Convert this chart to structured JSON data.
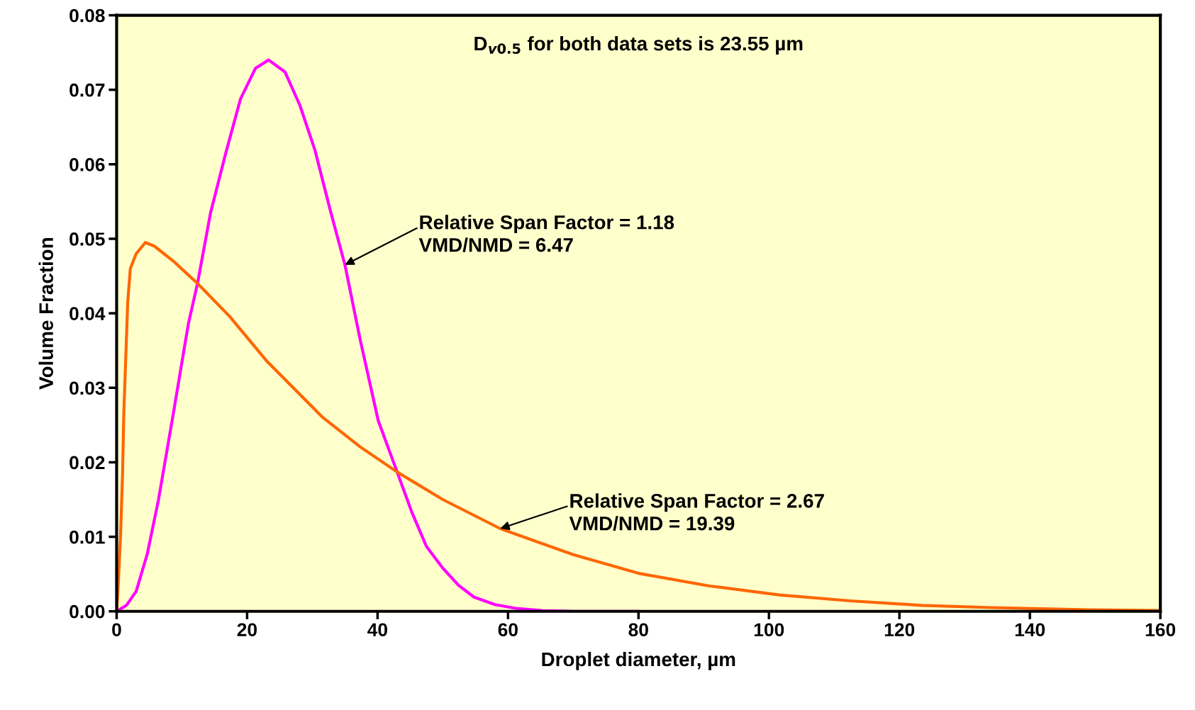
{
  "chart_data": {
    "type": "line",
    "xlabel": "Droplet diameter, µm",
    "ylabel": "Volume Fraction",
    "xlim": [
      0,
      160
    ],
    "xticks": [
      0,
      20,
      40,
      60,
      80,
      100,
      120,
      140,
      160
    ],
    "ylim": [
      0,
      0.08
    ],
    "yticks": [
      {
        "value": 0,
        "label": "0.00"
      },
      {
        "value": 0.01,
        "label": "0.01"
      },
      {
        "value": 0.02,
        "label": "0.02"
      },
      {
        "value": 0.03,
        "label": "0.03"
      },
      {
        "value": 0.04,
        "label": "0.04"
      },
      {
        "value": 0.05,
        "label": "0.05"
      },
      {
        "value": 0.06,
        "label": "0.06"
      },
      {
        "value": 0.07,
        "label": "0.07"
      },
      {
        "value": 0.08,
        "label": "0.08"
      }
    ],
    "grid": false,
    "legend": false,
    "marker": "none",
    "line_style": "solid",
    "series": [
      {
        "color": "#ff00ff",
        "x": [
          0,
          1.5,
          3,
          4.7,
          6.4,
          8.7,
          11,
          12.4,
          14.4,
          16.7,
          19,
          21.3,
          23.3,
          25.8,
          28.1,
          30.4,
          32.7,
          35,
          37.3,
          40.1,
          43,
          45.3,
          47.5,
          50,
          52.4,
          54.8,
          58,
          61.2,
          65.2,
          70,
          80
        ],
        "values": [
          0,
          0.0008,
          0.0027,
          0.0077,
          0.0149,
          0.0266,
          0.0386,
          0.044,
          0.0535,
          0.0614,
          0.0688,
          0.0729,
          0.074,
          0.0724,
          0.0679,
          0.0619,
          0.054,
          0.0465,
          0.0366,
          0.0256,
          0.0187,
          0.0132,
          0.0087,
          0.0058,
          0.0035,
          0.0019,
          0.0009,
          0.0004,
          0.0001,
          0,
          0
        ]
      },
      {
        "color": "#ff6600",
        "x": [
          0,
          0.2,
          0.6,
          0.9,
          1.1,
          1.4,
          1.7,
          2.1,
          3,
          4.4,
          5.8,
          8.7,
          12.4,
          17.3,
          23,
          31.5,
          37.3,
          43,
          50,
          58.8,
          70,
          80,
          90.9,
          101.6,
          112.5,
          123.4,
          134.2,
          149.4,
          160
        ],
        "values": [
          0,
          0.0027,
          0.0102,
          0.0182,
          0.0266,
          0.034,
          0.0415,
          0.046,
          0.048,
          0.0495,
          0.049,
          0.047,
          0.044,
          0.0396,
          0.0336,
          0.0261,
          0.0221,
          0.0187,
          0.015,
          0.0111,
          0.0076,
          0.0051,
          0.0034,
          0.0022,
          0.0014,
          0.0008,
          0.0005,
          0.0002,
          0.0001
        ]
      }
    ],
    "annotations": [
      "D$_{v0.5}$ for both data sets is 23.55 µm",
      {
        "text": "Relative Span Factor = 1.18\nVMD/NMD = 6.47",
        "x": 35,
        "y": 0.0465
      },
      {
        "text": "Relative Span Factor = 2.67\nVMD/NMD = 19.39",
        "x": 58.8,
        "y": 0.0111
      }
    ]
  }
}
